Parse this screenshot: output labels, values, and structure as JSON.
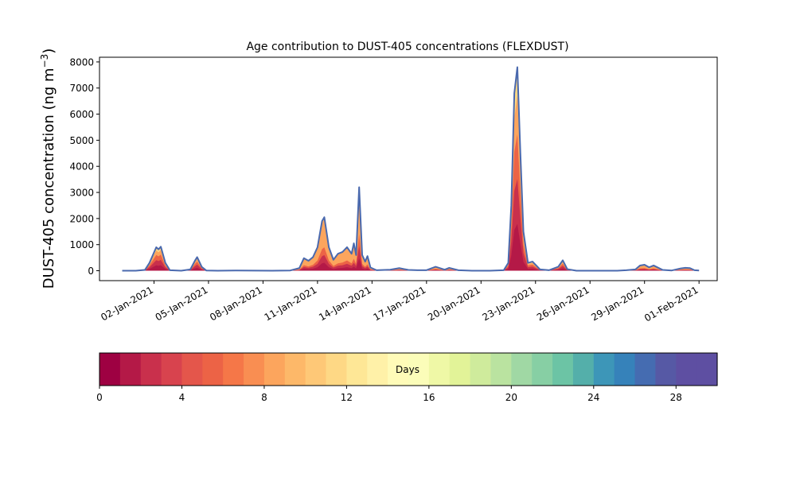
{
  "chart_data": {
    "type": "area",
    "title": "Age contribution to DUST-405 concentrations (FLEXDUST)",
    "ylabel": "DUST-405 concentration (ng m",
    "ylabel_sup": "−3",
    "ylabel_close": ")",
    "xlabel": "",
    "ylim": [
      -380,
      8180
    ],
    "yticks": [
      0,
      1000,
      2000,
      3000,
      4000,
      5000,
      6000,
      7000,
      8000
    ],
    "x_axis": {
      "type": "date",
      "start": "2020-12-30",
      "end": "2021-02-02"
    },
    "xticks": [
      {
        "date": "2021-01-02",
        "label": "02-Jan-2021"
      },
      {
        "date": "2021-01-05",
        "label": "05-Jan-2021"
      },
      {
        "date": "2021-01-08",
        "label": "08-Jan-2021"
      },
      {
        "date": "2021-01-11",
        "label": "11-Jan-2021"
      },
      {
        "date": "2021-01-14",
        "label": "14-Jan-2021"
      },
      {
        "date": "2021-01-17",
        "label": "17-Jan-2021"
      },
      {
        "date": "2021-01-20",
        "label": "20-Jan-2021"
      },
      {
        "date": "2021-01-23",
        "label": "23-Jan-2021"
      },
      {
        "date": "2021-01-26",
        "label": "26-Jan-2021"
      },
      {
        "date": "2021-01-29",
        "label": "29-Jan-2021"
      },
      {
        "date": "2021-02-01",
        "label": "01-Feb-2021"
      }
    ],
    "total_line_color": "#4a69ae",
    "total_series": [
      [
        "2020-12-31 06:00",
        0
      ],
      [
        "2021-01-01 00:00",
        0
      ],
      [
        "2021-01-01 12:00",
        30
      ],
      [
        "2021-01-01 18:00",
        300
      ],
      [
        "2021-01-02 03:00",
        900
      ],
      [
        "2021-01-02 06:00",
        820
      ],
      [
        "2021-01-02 09:00",
        920
      ],
      [
        "2021-01-02 15:00",
        300
      ],
      [
        "2021-01-02 21:00",
        20
      ],
      [
        "2021-01-03 12:00",
        0
      ],
      [
        "2021-01-04 00:00",
        50
      ],
      [
        "2021-01-04 06:00",
        380
      ],
      [
        "2021-01-04 09:00",
        520
      ],
      [
        "2021-01-04 15:00",
        150
      ],
      [
        "2021-01-04 21:00",
        10
      ],
      [
        "2021-01-05 12:00",
        0
      ],
      [
        "2021-01-06 12:00",
        10
      ],
      [
        "2021-01-07 12:00",
        5
      ],
      [
        "2021-01-08 12:00",
        0
      ],
      [
        "2021-01-09 12:00",
        10
      ],
      [
        "2021-01-10 00:00",
        100
      ],
      [
        "2021-01-10 06:00",
        480
      ],
      [
        "2021-01-10 12:00",
        380
      ],
      [
        "2021-01-10 18:00",
        520
      ],
      [
        "2021-01-11 00:00",
        900
      ],
      [
        "2021-01-11 06:00",
        1900
      ],
      [
        "2021-01-11 09:00",
        2050
      ],
      [
        "2021-01-11 15:00",
        900
      ],
      [
        "2021-01-11 21:00",
        420
      ],
      [
        "2021-01-12 03:00",
        650
      ],
      [
        "2021-01-12 09:00",
        720
      ],
      [
        "2021-01-12 15:00",
        900
      ],
      [
        "2021-01-12 21:00",
        650
      ],
      [
        "2021-01-13 00:00",
        1050
      ],
      [
        "2021-01-13 03:00",
        600
      ],
      [
        "2021-01-13 07:00",
        3200
      ],
      [
        "2021-01-13 11:00",
        600
      ],
      [
        "2021-01-13 15:00",
        350
      ],
      [
        "2021-01-13 18:00",
        560
      ],
      [
        "2021-01-13 22:00",
        120
      ],
      [
        "2021-01-14 06:00",
        20
      ],
      [
        "2021-01-15 00:00",
        40
      ],
      [
        "2021-01-15 12:00",
        100
      ],
      [
        "2021-01-16 00:00",
        30
      ],
      [
        "2021-01-16 12:00",
        20
      ],
      [
        "2021-01-17 00:00",
        20
      ],
      [
        "2021-01-17 12:00",
        150
      ],
      [
        "2021-01-18 00:00",
        40
      ],
      [
        "2021-01-18 06:00",
        110
      ],
      [
        "2021-01-18 18:00",
        20
      ],
      [
        "2021-01-19 12:00",
        0
      ],
      [
        "2021-01-20 12:00",
        0
      ],
      [
        "2021-01-21 06:00",
        20
      ],
      [
        "2021-01-21 12:00",
        300
      ],
      [
        "2021-01-21 16:00",
        2500
      ],
      [
        "2021-01-21 20:00",
        6800
      ],
      [
        "2021-01-22 00:00",
        7800
      ],
      [
        "2021-01-22 04:00",
        4500
      ],
      [
        "2021-01-22 08:00",
        1500
      ],
      [
        "2021-01-22 14:00",
        300
      ],
      [
        "2021-01-22 20:00",
        350
      ],
      [
        "2021-01-23 06:00",
        50
      ],
      [
        "2021-01-23 18:00",
        20
      ],
      [
        "2021-01-24 06:00",
        150
      ],
      [
        "2021-01-24 12:00",
        400
      ],
      [
        "2021-01-24 18:00",
        60
      ],
      [
        "2021-01-25 06:00",
        0
      ],
      [
        "2021-01-26 12:00",
        0
      ],
      [
        "2021-01-27 12:00",
        0
      ],
      [
        "2021-01-28 00:00",
        20
      ],
      [
        "2021-01-28 12:00",
        50
      ],
      [
        "2021-01-28 18:00",
        200
      ],
      [
        "2021-01-29 00:00",
        230
      ],
      [
        "2021-01-29 06:00",
        130
      ],
      [
        "2021-01-29 12:00",
        200
      ],
      [
        "2021-01-30 00:00",
        30
      ],
      [
        "2021-01-30 12:00",
        10
      ],
      [
        "2021-01-31 00:00",
        90
      ],
      [
        "2021-01-31 06:00",
        110
      ],
      [
        "2021-01-31 12:00",
        100
      ],
      [
        "2021-01-31 18:00",
        20
      ],
      [
        "2021-02-01 00:00",
        10
      ]
    ],
    "colorbar": {
      "label": "Days",
      "vmin": 0,
      "vmax": 30,
      "ticks": [
        0,
        4,
        8,
        12,
        16,
        20,
        24,
        28
      ],
      "colors": [
        "#9e0142",
        "#b41947",
        "#c9304c",
        "#d8434e",
        "#e4564b",
        "#ec6346",
        "#f57748",
        "#f98e52",
        "#fca55d",
        "#fdb869",
        "#fec877",
        "#fed885",
        "#fee796",
        "#fff1a8",
        "#fffbb8",
        "#fbfdb9",
        "#eff8a6",
        "#e2f398",
        "#cfeb9c",
        "#bae3a0",
        "#a0d8a4",
        "#87cfa4",
        "#6cc4a5",
        "#54afaa",
        "#3d96b8",
        "#3682ba",
        "#456cb1",
        "#5659a5",
        "#5e4fa2",
        "#5e4fa2"
      ]
    }
  }
}
